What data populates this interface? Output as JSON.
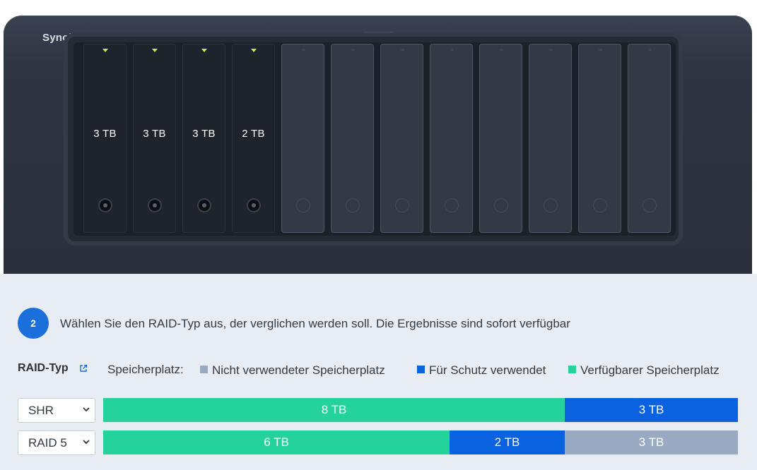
{
  "device": {
    "brand": "Synology",
    "power_icon": "power-icon",
    "bays": [
      {
        "capacity": "3 TB",
        "installed": true
      },
      {
        "capacity": "3 TB",
        "installed": true
      },
      {
        "capacity": "3 TB",
        "installed": true
      },
      {
        "capacity": "2 TB",
        "installed": true
      },
      {
        "capacity": "",
        "installed": false
      },
      {
        "capacity": "",
        "installed": false
      },
      {
        "capacity": "",
        "installed": false
      },
      {
        "capacity": "",
        "installed": false
      },
      {
        "capacity": "",
        "installed": false
      },
      {
        "capacity": "",
        "installed": false
      },
      {
        "capacity": "",
        "installed": false
      },
      {
        "capacity": "",
        "installed": false
      }
    ]
  },
  "step": {
    "number": "2",
    "instruction": "Wählen Sie den RAID-Typ aus, der verglichen werden soll. Die Ergebnisse sind sofort verfügbar"
  },
  "raid_header": {
    "label": "RAID-Typ",
    "link_icon": "external-link-icon",
    "storage_label": "Speicherplatz:"
  },
  "legend": [
    {
      "label": "Nicht verwendeter Speicherplatz",
      "color": "#9aaac2"
    },
    {
      "label": "Für Schutz verwendet",
      "color": "#0b62e0"
    },
    {
      "label": "Verfügbarer Speicherplatz",
      "color": "#24d39a"
    }
  ],
  "colors": {
    "unused": "#9aaac2",
    "protection": "#0b62e0",
    "available": "#24d39a",
    "accent": "#1a6fdd"
  },
  "rows": [
    {
      "raid_type": "SHR",
      "total_tb": 11,
      "segments": [
        {
          "kind": "available",
          "label": "8 TB",
          "tb": 8
        },
        {
          "kind": "protection",
          "label": "3 TB",
          "tb": 3
        }
      ]
    },
    {
      "raid_type": "RAID 5",
      "total_tb": 11,
      "segments": [
        {
          "kind": "available",
          "label": "6 TB",
          "tb": 6
        },
        {
          "kind": "protection",
          "label": "2 TB",
          "tb": 2
        },
        {
          "kind": "unused",
          "label": "3 TB",
          "tb": 3
        }
      ]
    }
  ]
}
